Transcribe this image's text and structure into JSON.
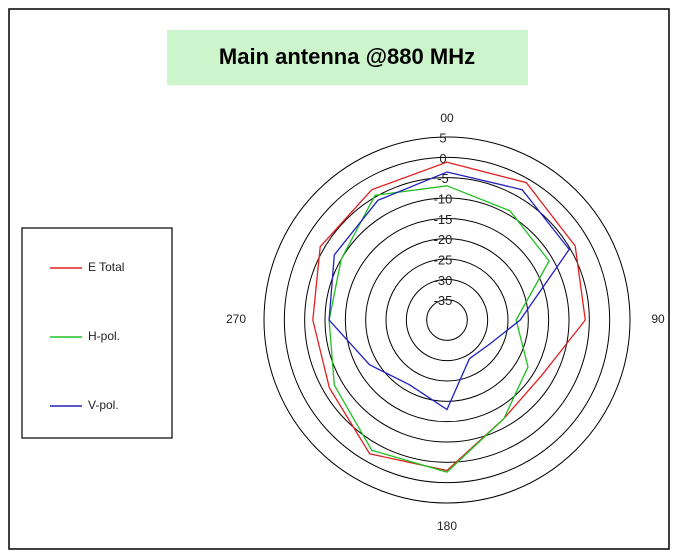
{
  "chart_data": {
    "type": "polar",
    "title": "Main  antenna @880 MHz",
    "theta": [
      0,
      30,
      60,
      90,
      120,
      150,
      180,
      210,
      240,
      270,
      300,
      330
    ],
    "series": [
      {
        "name": "E Total",
        "color": "#e02020",
        "values": [
          -1.2,
          -1,
          -3.6,
          -6,
          -13,
          -12,
          -3,
          -2,
          -6.6,
          -7,
          -4,
          -3
        ]
      },
      {
        "name": "H-pol.",
        "color": "#20c020",
        "values": [
          -7,
          -9,
          -11,
          -23,
          -17,
          -12,
          -2.6,
          -3,
          -8,
          -11,
          -10,
          -4.6
        ]
      },
      {
        "name": "V-pol.",
        "color": "#2020c0",
        "values": [
          -3.6,
          -3,
          -5.3,
          -22,
          -28,
          -29,
          -18,
          -21.6,
          -18,
          -11,
          -8,
          -6
        ]
      }
    ],
    "rlim": [
      -40,
      5
    ],
    "rticks": [
      5,
      0,
      -5,
      -10,
      -15,
      -20,
      -25,
      -30,
      -35
    ],
    "thetaticks": [
      {
        "value": 0,
        "label": "00"
      },
      90,
      180,
      270
    ]
  }
}
